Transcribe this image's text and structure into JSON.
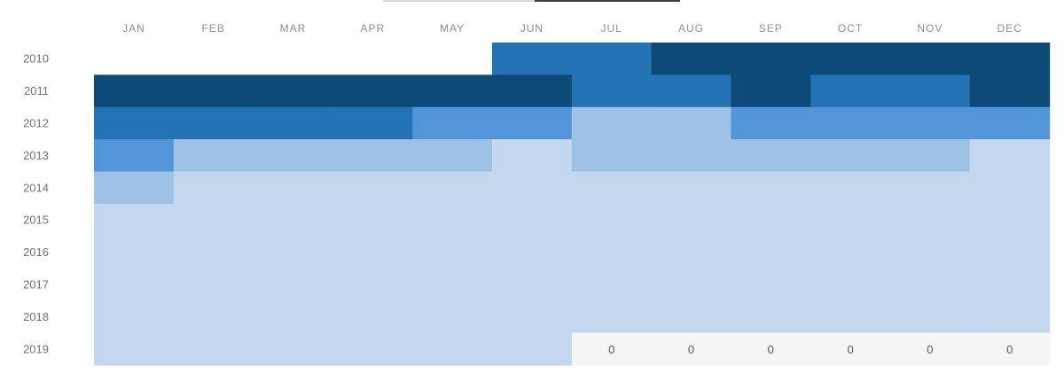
{
  "chart_data": {
    "type": "heatmap",
    "months": [
      "JAN",
      "FEB",
      "MAR",
      "APR",
      "MAY",
      "JUN",
      "JUL",
      "AUG",
      "SEP",
      "OCT",
      "NOV",
      "DEC"
    ],
    "years": [
      "2010",
      "2011",
      "2012",
      "2013",
      "2014",
      "2015",
      "2016",
      "2017",
      "2018",
      "2019"
    ],
    "levels": [
      [
        null,
        null,
        null,
        null,
        null,
        3,
        3,
        4,
        4,
        4,
        4,
        4
      ],
      [
        4,
        4,
        4,
        4,
        4,
        4,
        3,
        3,
        4,
        3,
        3,
        4
      ],
      [
        3,
        3,
        3,
        3,
        2,
        2,
        1,
        1,
        2,
        2,
        2,
        2
      ],
      [
        2,
        1,
        1,
        1,
        1,
        0,
        1,
        1,
        1,
        1,
        1,
        0
      ],
      [
        1,
        0,
        0,
        0,
        0,
        0,
        0,
        0,
        0,
        0,
        0,
        0
      ],
      [
        0,
        0,
        0,
        0,
        0,
        0,
        0,
        0,
        0,
        0,
        0,
        0
      ],
      [
        0,
        0,
        0,
        0,
        0,
        0,
        0,
        0,
        0,
        0,
        0,
        0
      ],
      [
        0,
        0,
        0,
        0,
        0,
        0,
        0,
        0,
        0,
        0,
        0,
        0
      ],
      [
        0,
        0,
        0,
        0,
        0,
        0,
        0,
        0,
        0,
        0,
        0,
        0
      ],
      [
        0,
        0,
        0,
        0,
        0,
        0,
        "zero",
        "zero",
        "zero",
        "zero",
        "zero",
        "zero"
      ]
    ],
    "cell_labels": [
      [
        "",
        "",
        "",
        "",
        "",
        "",
        "",
        "",
        "",
        "",
        "",
        ""
      ],
      [
        "",
        "",
        "",
        "",
        "",
        "",
        "",
        "",
        "",
        "",
        "",
        ""
      ],
      [
        "",
        "",
        "",
        "",
        "",
        "",
        "",
        "",
        "",
        "",
        "",
        ""
      ],
      [
        "",
        "",
        "",
        "",
        "",
        "",
        "",
        "",
        "",
        "",
        "",
        ""
      ],
      [
        "",
        "",
        "",
        "",
        "",
        "",
        "",
        "",
        "",
        "",
        "",
        ""
      ],
      [
        "",
        "",
        "",
        "",
        "",
        "",
        "",
        "",
        "",
        "",
        "",
        ""
      ],
      [
        "",
        "",
        "",
        "",
        "",
        "",
        "",
        "",
        "",
        "",
        "",
        ""
      ],
      [
        "",
        "",
        "",
        "",
        "",
        "",
        "",
        "",
        "",
        "",
        "",
        ""
      ],
      [
        "",
        "",
        "",
        "",
        "",
        "",
        "",
        "",
        "",
        "",
        "",
        ""
      ],
      [
        "",
        "",
        "",
        "",
        "",
        "",
        "0",
        "0",
        "0",
        "0",
        "0",
        "0"
      ]
    ],
    "colors": {
      "level_0": "#c3d8ee",
      "level_1": "#9ec1e6",
      "level_2": "#5296d9",
      "level_3": "#2373b5",
      "level_4": "#0d4a78",
      "zero": "#f4f5f4"
    }
  }
}
